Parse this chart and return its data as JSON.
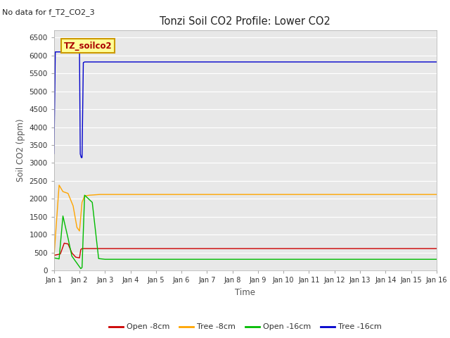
{
  "title": "Tonzi Soil CO2 Profile: Lower CO2",
  "no_data_text": "No data for f_T2_CO2_3",
  "legend_box_text": "TZ_soilco2",
  "xlabel": "Time",
  "ylabel": "Soil CO2 (ppm)",
  "ylim": [
    0,
    6700
  ],
  "yticks": [
    0,
    500,
    1000,
    1500,
    2000,
    2500,
    3000,
    3500,
    4000,
    4500,
    5000,
    5500,
    6000,
    6500
  ],
  "background_color": "#e8e8e8",
  "fig_background": "#ffffff",
  "lines": {
    "open_8cm": {
      "color": "#cc0000",
      "label": "Open -8cm",
      "steady": 610,
      "spike_x": [
        0,
        0.25,
        0.4,
        0.55,
        0.7,
        0.85,
        1.0,
        1.05,
        1.1,
        1.2,
        1.3
      ],
      "spike_y": [
        420,
        460,
        760,
        740,
        490,
        370,
        350,
        580,
        610,
        610,
        610
      ]
    },
    "tree_8cm": {
      "color": "#ffa500",
      "label": "Tree -8cm",
      "steady": 2120,
      "spike_x": [
        0,
        0.2,
        0.35,
        0.55,
        0.75,
        0.9,
        1.0,
        1.1,
        1.2,
        1.4,
        1.6,
        1.8,
        2.0,
        2.1
      ],
      "spike_y": [
        380,
        2380,
        2200,
        2150,
        1800,
        1200,
        1100,
        1900,
        2080,
        2100,
        2110,
        2120,
        2120,
        2120
      ]
    },
    "open_16cm": {
      "color": "#00bb00",
      "label": "Open -16cm",
      "steady": 310,
      "spike_x": [
        0,
        0.2,
        0.35,
        0.55,
        0.7,
        0.8,
        0.9,
        1.0,
        1.05,
        1.1,
        1.2,
        1.5,
        1.75,
        2.0,
        2.1
      ],
      "spike_y": [
        350,
        320,
        1520,
        900,
        400,
        300,
        200,
        100,
        50,
        80,
        2100,
        1900,
        330,
        310,
        310
      ]
    },
    "tree_16cm": {
      "color": "#0000cc",
      "label": "Tree -16cm",
      "steady": 5820,
      "spike_x": [
        0,
        0.05,
        0.08,
        0.3,
        0.6,
        0.9,
        1.0,
        1.03,
        1.07,
        1.1,
        1.15,
        1.2,
        1.3,
        2.0,
        2.1
      ],
      "spike_y": [
        3260,
        6100,
        6100,
        6100,
        6100,
        6100,
        6100,
        3250,
        3150,
        3150,
        5800,
        5820,
        5820,
        5820,
        5820
      ]
    }
  },
  "n_days": 15,
  "x_tick_labels": [
    "Jan 1",
    "Jan 2",
    "Jan 3",
    "Jan 4",
    "Jan 5",
    "Jan 6",
    "Jan 7",
    "Jan 8",
    "Jan 9",
    "Jan 10",
    "Jan 11",
    "Jan 12",
    "Jan 13",
    "Jan 14",
    "Jan 15",
    "Jan 16"
  ]
}
